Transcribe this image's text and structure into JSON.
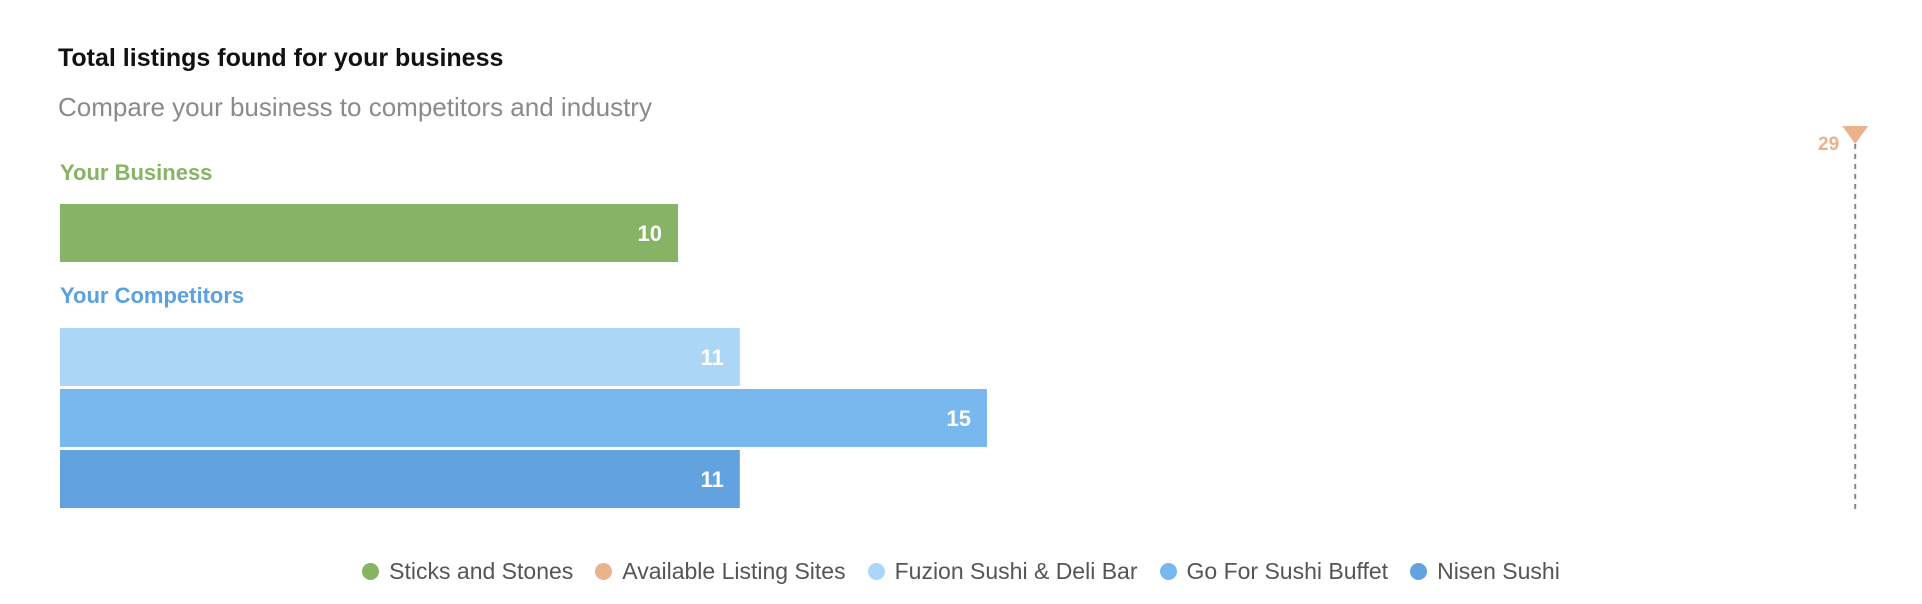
{
  "header": {
    "title": "Total listings found for your business",
    "subtitle": "Compare your business to competitors and industry"
  },
  "chart_data": {
    "type": "bar",
    "orientation": "horizontal",
    "title": "Total listings found for your business",
    "subtitle": "Compare your business to competitors and industry",
    "xlim": [
      0,
      30
    ],
    "grid": false,
    "legend_position": "bottom",
    "groups": [
      {
        "label": "Your Business",
        "label_color": "#86b464",
        "bars": [
          {
            "name": "Sticks and Stones",
            "value": 10,
            "color": "#86b464"
          }
        ]
      },
      {
        "label": "Your Competitors",
        "label_color": "#5aa0e2",
        "bars": [
          {
            "name": "Fuzion Sushi & Deli Bar",
            "value": 11,
            "color": "#abd6f6"
          },
          {
            "name": "Go For Sushi Buffet",
            "value": 15,
            "color": "#78b8ef"
          },
          {
            "name": "Nisen Sushi",
            "value": 11,
            "color": "#62a2e0"
          }
        ]
      }
    ],
    "reference_marker": {
      "name": "Available Listing Sites",
      "value": 29,
      "color": "#eab38d"
    },
    "legend": [
      {
        "name": "Sticks and Stones",
        "color": "#86b464"
      },
      {
        "name": "Available Listing Sites",
        "color": "#eab38d"
      },
      {
        "name": "Fuzion Sushi & Deli Bar",
        "color": "#abd6f6"
      },
      {
        "name": "Go For Sushi Buffet",
        "color": "#78b8ef"
      },
      {
        "name": "Nisen Sushi",
        "color": "#62a2e0"
      }
    ]
  }
}
